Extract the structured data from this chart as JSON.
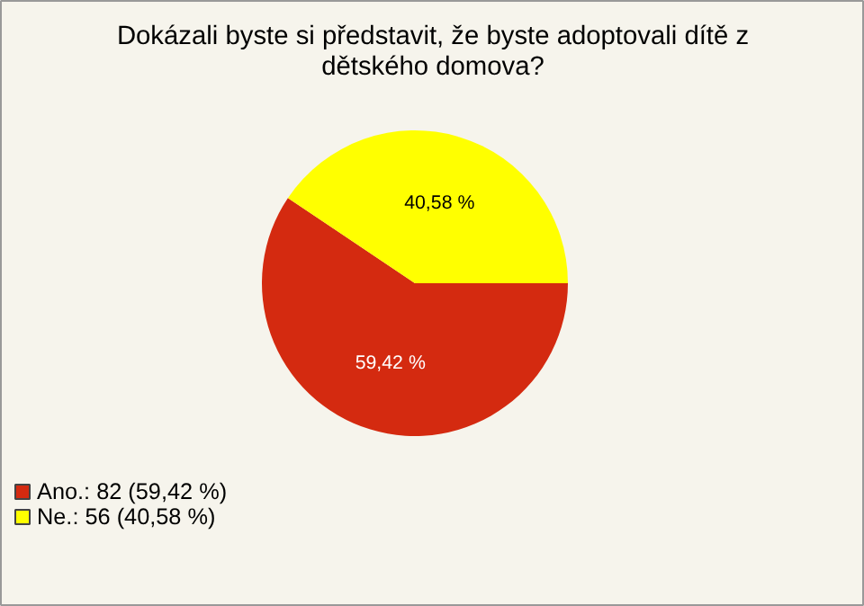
{
  "chart_data": {
    "type": "pie",
    "title": "Dokázali byste si představit, že byste adoptovali dítě z dětského domova?",
    "categories": [
      "Ano.: 82 (59,42 %)",
      "Ne.: 56 (40,58 %)"
    ],
    "values": [
      59.42,
      40.58
    ],
    "colors": [
      "#d42a10",
      "#ffff00"
    ],
    "value_labels": [
      "59,42 %",
      "40,58 %"
    ],
    "legend": "bottom left"
  }
}
